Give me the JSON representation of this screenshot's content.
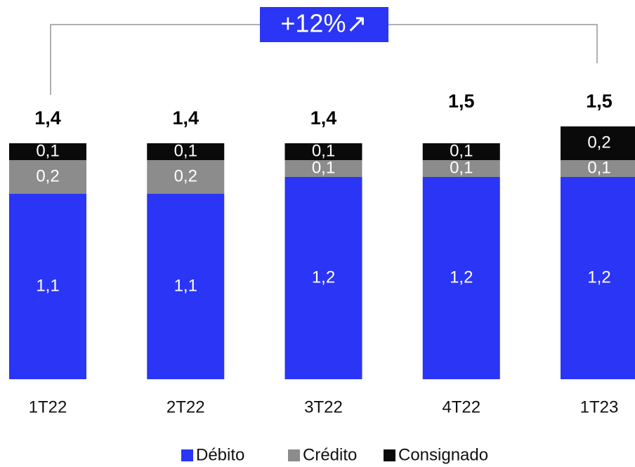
{
  "chart_data": {
    "type": "stacked_bar",
    "categories": [
      "1T22",
      "2T22",
      "3T22",
      "4T22",
      "1T23"
    ],
    "series": [
      {
        "name": "Débito",
        "color": "#2b35f5",
        "values": [
          1.1,
          1.1,
          1.2,
          1.2,
          1.2
        ],
        "value_labels": [
          "1,1",
          "1,1",
          "1,2",
          "1,2",
          "1,2"
        ]
      },
      {
        "name": "Crédito",
        "color": "#8c8c8c",
        "values": [
          0.2,
          0.2,
          0.1,
          0.1,
          0.1
        ],
        "value_labels": [
          "0,2",
          "0,2",
          "0,1",
          "0,1",
          "0,1"
        ]
      },
      {
        "name": "Consignado",
        "color": "#0a0a0a",
        "values": [
          0.1,
          0.1,
          0.1,
          0.1,
          0.2
        ],
        "value_labels": [
          "0,1",
          "0,1",
          "0,1",
          "0,1",
          "0,2"
        ]
      }
    ],
    "totals": {
      "values": [
        1.4,
        1.4,
        1.4,
        1.5,
        1.5
      ],
      "labels": [
        "1,4",
        "1,4",
        "1,4",
        "1,5",
        "1,5"
      ]
    },
    "annotation": "+12%↗",
    "legend": "bottom"
  }
}
